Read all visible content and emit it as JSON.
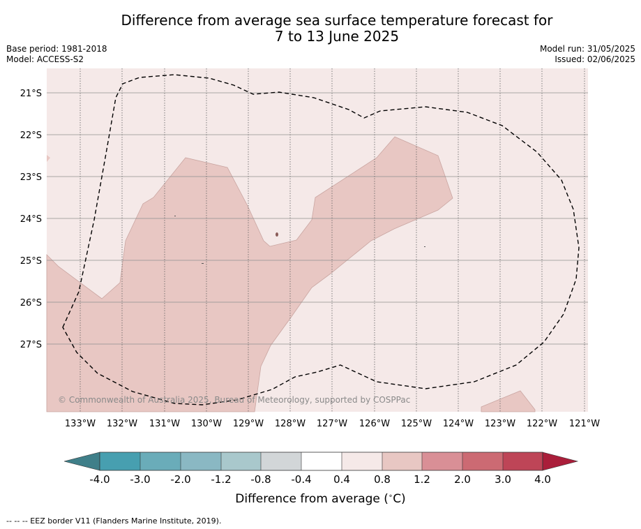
{
  "title": {
    "line1": "Difference from average sea surface temperature forecast for",
    "line2": "7 to 13 June 2025"
  },
  "meta_left": {
    "base_period": "Base period: 1981-2018",
    "model": "Model: ACCESS-S2"
  },
  "meta_right": {
    "model_run": "Model run: 31/05/2025",
    "issued": "Issued: 02/06/2025"
  },
  "map": {
    "lat_labels": [
      "21°S",
      "22°S",
      "23°S",
      "24°S",
      "25°S",
      "26°S",
      "27°S"
    ],
    "lon_labels": [
      "133°W",
      "132°W",
      "131°W",
      "130°W",
      "129°W",
      "128°W",
      "127°W",
      "126°W",
      "125°W",
      "124°W",
      "123°W",
      "122°W",
      "121°W"
    ],
    "copyright": "© Commonwealth of Australia 2025, Bureau of Meteorology, supported by COSPPac",
    "colors": {
      "band_0_4_to_0_8": "#f5e9e8",
      "band_0_8_to_1_2": "#e8c7c3"
    }
  },
  "colorbar": {
    "ticks": [
      "-4.0",
      "-3.0",
      "-2.0",
      "-1.2",
      "-0.8",
      "-0.4",
      "0.4",
      "0.8",
      "1.2",
      "2.0",
      "3.0",
      "4.0"
    ],
    "colors": [
      "#3f7f89",
      "#479fb0",
      "#6aacb9",
      "#8ab8c3",
      "#a9c8cc",
      "#d2d6d8",
      "#ffffff",
      "#f5e9e8",
      "#e8c7c3",
      "#d98f96",
      "#cc6a73",
      "#be4557",
      "#aa1e3a"
    ],
    "label": "Difference from average ($^\\circ$C)",
    "label_text": "Difference from average (",
    "label_unit": "C)"
  },
  "footer": "--  --  -- EEZ border V11 (Flanders Marine Institute, 2019)."
}
